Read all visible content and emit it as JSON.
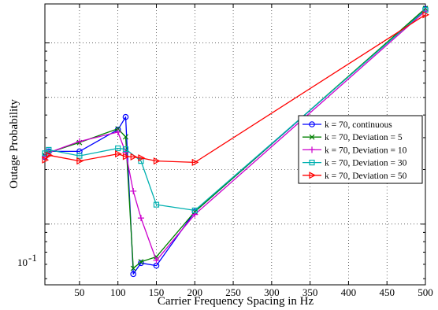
{
  "chart_data": {
    "type": "line",
    "xlabel": "Carrier Frequency Spacing in Hz",
    "ylabel": "Outage Probability",
    "xlim": [
      5,
      500
    ],
    "y_scale": "log",
    "grid": true,
    "legend_position": "right",
    "x_ticks": [
      {
        "value": 50,
        "label": "50"
      },
      {
        "value": 100,
        "label": "100"
      },
      {
        "value": 150,
        "label": "150"
      },
      {
        "value": 200,
        "label": "200"
      },
      {
        "value": 250,
        "label": "250"
      },
      {
        "value": 300,
        "label": "300"
      },
      {
        "value": 350,
        "label": "350"
      },
      {
        "value": 400,
        "label": "400"
      },
      {
        "value": 450,
        "label": "450"
      },
      {
        "value": 500,
        "label": "500"
      }
    ],
    "y_tick_label": {
      "base": "10",
      "exponent": "-1"
    },
    "series": [
      {
        "name": "k = 70, continuous",
        "color": "#0000ff",
        "marker": "circle",
        "x": [
          5,
          10,
          50,
          100,
          110,
          120,
          130,
          150,
          200,
          500
        ],
        "y": [
          0.235,
          0.252,
          0.252,
          0.332,
          0.39,
          0.053,
          0.061,
          0.059,
          0.117,
          1.54
        ]
      },
      {
        "name": "k = 70, Deviation = 5",
        "color": "#008000",
        "marker": "x",
        "x": [
          5,
          10,
          50,
          100,
          110,
          120,
          130,
          150,
          200,
          500
        ],
        "y": [
          0.24,
          0.248,
          0.282,
          0.336,
          0.303,
          0.057,
          0.062,
          0.066,
          0.117,
          1.55
        ]
      },
      {
        "name": "k = 70, Deviation = 10",
        "color": "#cc00cc",
        "marker": "plus",
        "x": [
          5,
          10,
          50,
          100,
          110,
          120,
          130,
          150,
          200,
          500
        ],
        "y": [
          0.236,
          0.248,
          0.286,
          0.322,
          0.249,
          0.152,
          0.108,
          0.063,
          0.113,
          1.5
        ]
      },
      {
        "name": "k = 70, Deviation = 30",
        "color": "#00b0b0",
        "marker": "square",
        "x": [
          5,
          10,
          50,
          100,
          110,
          130,
          150,
          200,
          500
        ],
        "y": [
          0.246,
          0.257,
          0.238,
          0.262,
          0.259,
          0.223,
          0.128,
          0.119,
          1.52
        ]
      },
      {
        "name": "k = 70, Deviation = 50",
        "color": "#ff0000",
        "marker": "triangle-right",
        "x": [
          5,
          10,
          50,
          100,
          110,
          120,
          130,
          150,
          200,
          500
        ],
        "y": [
          0.226,
          0.24,
          0.223,
          0.244,
          0.236,
          0.235,
          0.232,
          0.223,
          0.219,
          1.43
        ]
      }
    ]
  }
}
